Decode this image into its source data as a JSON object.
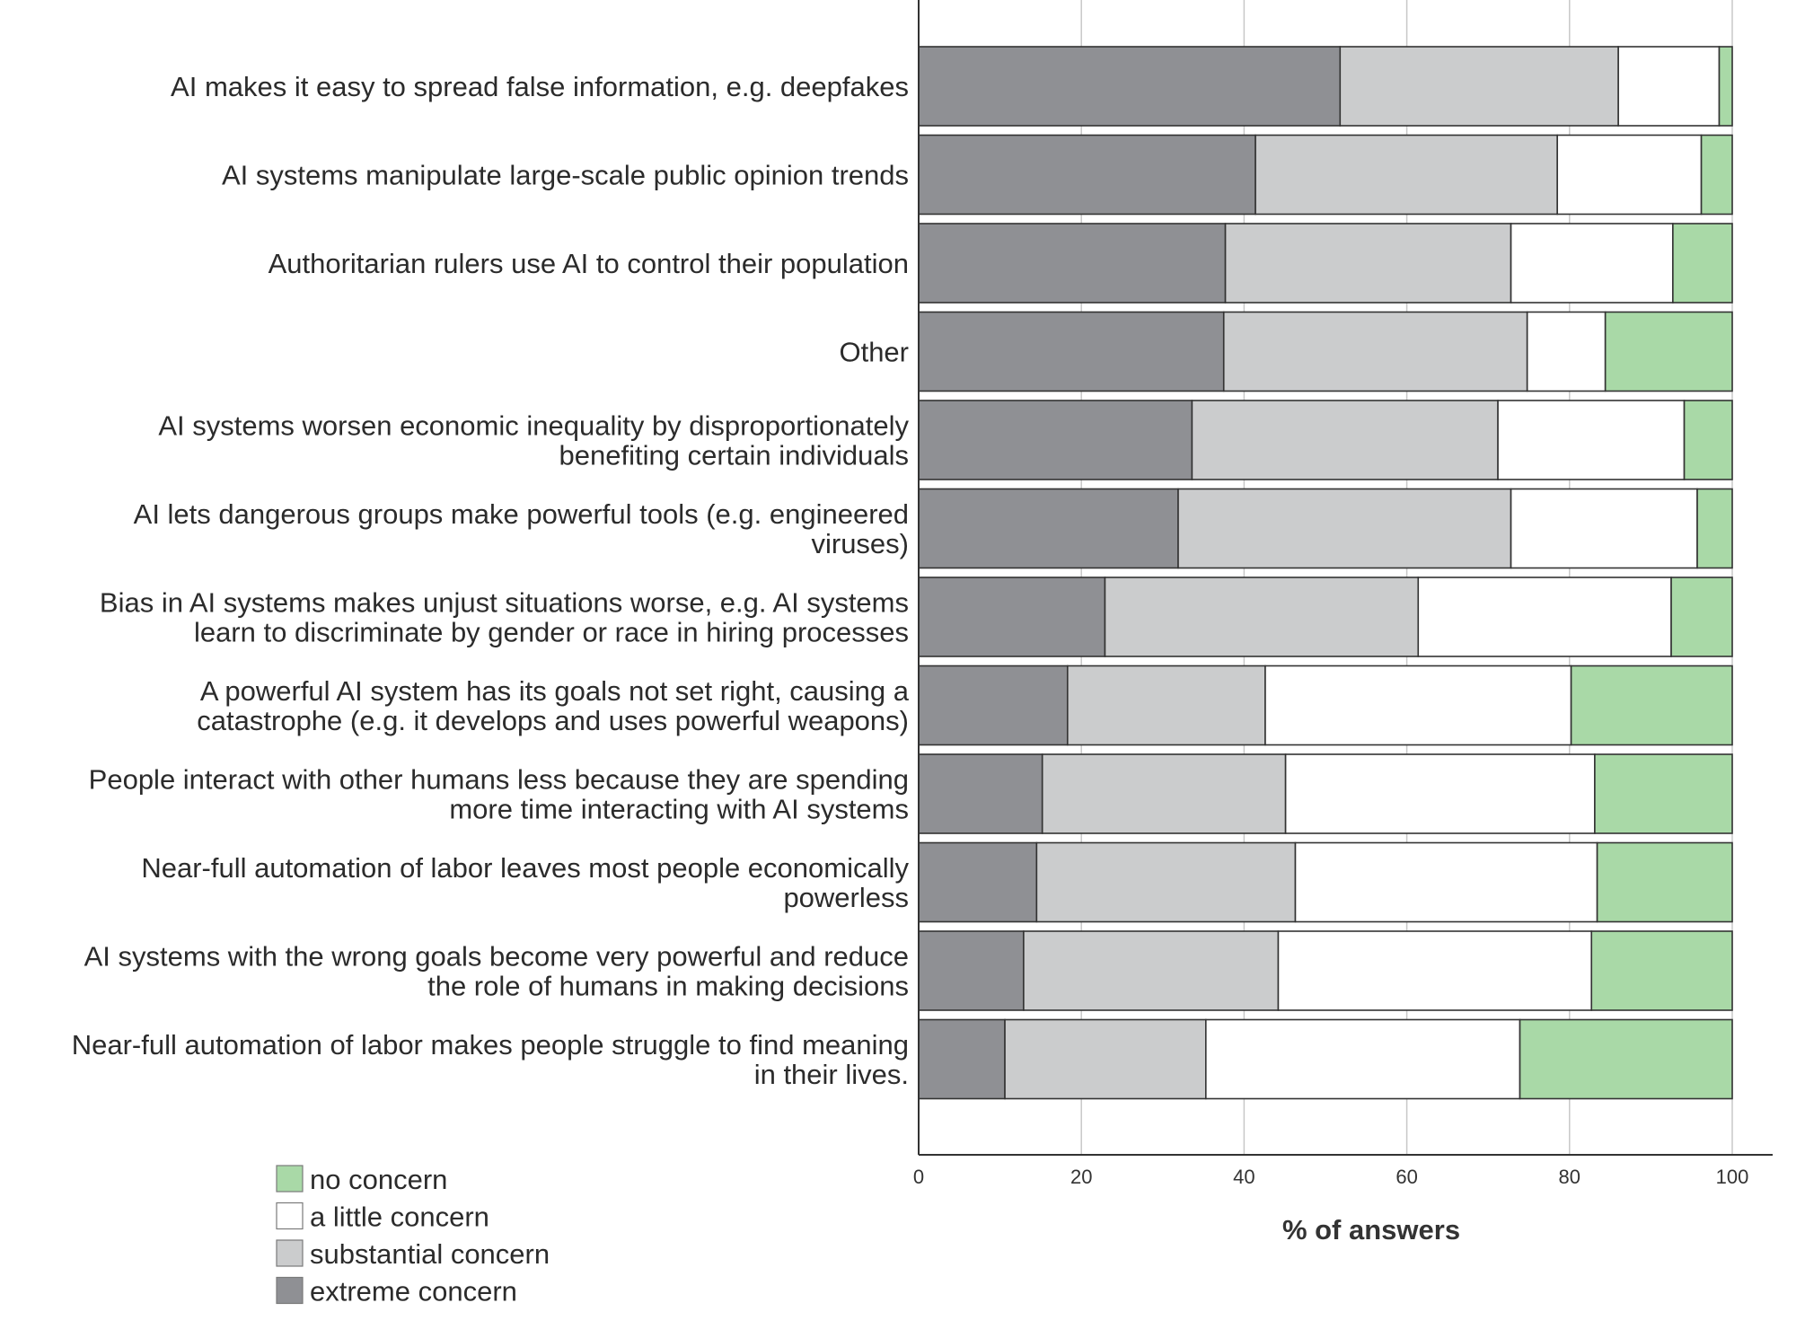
{
  "chart_data": {
    "type": "bar",
    "orientation": "horizontal",
    "stacked": true,
    "xlabel": "% of answers",
    "xlim": [
      0,
      100
    ],
    "xticks": [
      0,
      20,
      40,
      60,
      80,
      100
    ],
    "grid": true,
    "legend_position": "bottom-left",
    "categories": [
      [
        "AI makes it easy to spread false information, e.g. deepfakes"
      ],
      [
        "AI systems manipulate large-scale public opinion trends"
      ],
      [
        "Authoritarian rulers use AI to control their population"
      ],
      [
        "Other"
      ],
      [
        "AI systems worsen economic inequality by disproportionately",
        "benefiting certain individuals"
      ],
      [
        "AI lets dangerous groups make powerful tools (e.g. engineered",
        "viruses)"
      ],
      [
        "Bias in AI systems makes unjust situations worse, e.g. AI systems",
        "learn to discriminate by gender or race in hiring processes"
      ],
      [
        "A powerful AI system has its goals not set right, causing a",
        "catastrophe (e.g. it develops and uses powerful weapons)"
      ],
      [
        "People interact with other humans less because they are spending",
        "more time interacting with AI systems"
      ],
      [
        "Near-full automation of labor leaves most people economically",
        "powerless"
      ],
      [
        "AI systems with the wrong goals become very powerful and reduce",
        "the role of humans in making decisions"
      ],
      [
        "Near-full automation of labor makes people struggle to find meaning",
        "in their lives."
      ]
    ],
    "series": [
      {
        "name": "extreme concern",
        "color": "#8f9094",
        "values": [
          51.8,
          41.4,
          37.7,
          37.5,
          33.6,
          31.9,
          22.9,
          18.3,
          15.2,
          14.5,
          12.9,
          10.6
        ]
      },
      {
        "name": "substantial concern",
        "color": "#cbcccd",
        "values": [
          34.2,
          37.1,
          35.1,
          37.3,
          37.6,
          40.9,
          38.5,
          24.3,
          29.9,
          31.8,
          31.3,
          24.7
        ]
      },
      {
        "name": "a little concern",
        "color": "#ffffff",
        "values": [
          12.4,
          17.7,
          19.9,
          9.6,
          22.9,
          22.9,
          31.1,
          37.6,
          38.0,
          37.1,
          38.5,
          38.6
        ]
      },
      {
        "name": "no concern",
        "color": "#a9d9a7",
        "values": [
          1.6,
          3.8,
          7.3,
          15.6,
          5.9,
          4.3,
          7.5,
          19.8,
          16.9,
          16.6,
          17.3,
          26.1
        ]
      }
    ],
    "legend": [
      "no concern",
      "a little concern",
      "substantial concern",
      "extreme concern"
    ]
  }
}
